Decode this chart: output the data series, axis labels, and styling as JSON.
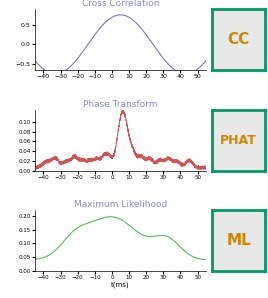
{
  "title1": "Cross Correlation",
  "title2": "Phase Transform",
  "title3": "Maximum Likelihood",
  "label1": "CC",
  "label2": "PHAT",
  "label3": "ML",
  "xlabel": "t(ms)",
  "xlim": [
    -45,
    55
  ],
  "xticks": [
    -40,
    -30,
    -20,
    -10,
    0,
    10,
    20,
    30,
    40,
    50
  ],
  "color1": "#7777bb",
  "color2": "#cc5555",
  "color3": "#55bb55",
  "box_color": "#009966",
  "box_bg": "#e8e8e8",
  "label_color": "#cc8800",
  "title_color": "#8888cc"
}
